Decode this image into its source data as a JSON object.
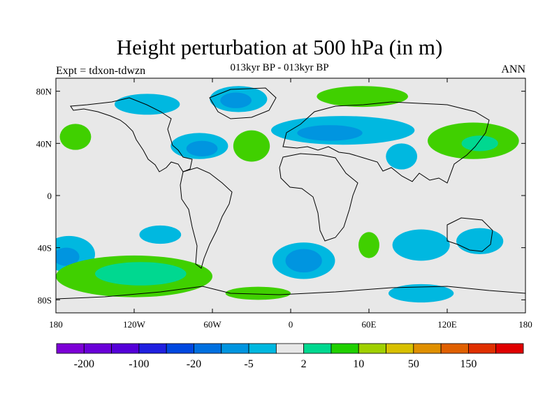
{
  "title": "Height perturbation at 500 hPa (in m)",
  "subtitle": "013kyr BP - 013kyr BP",
  "left_label": "Expt = tdxon-tdwzn",
  "right_label": "ANN",
  "map": {
    "background_color": "#e8e8e8",
    "lat_ticks": [
      {
        "value": 80,
        "label": "80N"
      },
      {
        "value": 40,
        "label": "40N"
      },
      {
        "value": 0,
        "label": "0"
      },
      {
        "value": -40,
        "label": "40S"
      },
      {
        "value": -80,
        "label": "80S"
      }
    ],
    "lon_ticks": [
      {
        "value": -180,
        "label": "180"
      },
      {
        "value": -120,
        "label": "120W"
      },
      {
        "value": -60,
        "label": "60W"
      },
      {
        "value": 0,
        "label": "0"
      },
      {
        "value": 60,
        "label": "60E"
      },
      {
        "value": 120,
        "label": "120E"
      },
      {
        "value": 180,
        "label": "180"
      }
    ],
    "lon_range": [
      -180,
      180
    ],
    "lat_range": [
      -90,
      90
    ],
    "regions": [
      {
        "name": "nw-atlantic-low",
        "lon": -70,
        "lat": 38,
        "rx": 22,
        "ry": 10,
        "level": "c1"
      },
      {
        "name": "nw-atlantic-low-core",
        "lon": -68,
        "lat": 36,
        "rx": 12,
        "ry": 6,
        "level": "c2"
      },
      {
        "name": "greenland-low",
        "lon": -40,
        "lat": 74,
        "rx": 22,
        "ry": 10,
        "level": "c1"
      },
      {
        "name": "greenland-low-core",
        "lon": -42,
        "lat": 73,
        "rx": 12,
        "ry": 6,
        "level": "c2"
      },
      {
        "name": "canada-low",
        "lon": -110,
        "lat": 70,
        "rx": 25,
        "ry": 8,
        "level": "c1"
      },
      {
        "name": "europe-low",
        "lon": 40,
        "lat": 50,
        "rx": 55,
        "ry": 11,
        "level": "c1"
      },
      {
        "name": "europe-low-core",
        "lon": 30,
        "lat": 48,
        "rx": 25,
        "ry": 6,
        "level": "c2"
      },
      {
        "name": "tibet-low",
        "lon": 85,
        "lat": 30,
        "rx": 12,
        "ry": 10,
        "level": "c1"
      },
      {
        "name": "south-pacific-low",
        "lon": -170,
        "lat": -45,
        "rx": 20,
        "ry": 14,
        "level": "c1"
      },
      {
        "name": "south-pacific-low-core",
        "lon": -172,
        "lat": -47,
        "rx": 10,
        "ry": 7,
        "level": "c2"
      },
      {
        "name": "southern-ocean-atl-low",
        "lon": 10,
        "lat": -50,
        "rx": 24,
        "ry": 14,
        "level": "c1"
      },
      {
        "name": "southern-ocean-atl-low-core",
        "lon": 10,
        "lat": -50,
        "rx": 14,
        "ry": 9,
        "level": "c2"
      },
      {
        "name": "indian-ocean-low",
        "lon": 100,
        "lat": -38,
        "rx": 22,
        "ry": 12,
        "level": "c1"
      },
      {
        "name": "australia-low",
        "lon": 145,
        "lat": -35,
        "rx": 18,
        "ry": 10,
        "level": "c1"
      },
      {
        "name": "antarctic-low",
        "lon": 100,
        "lat": -75,
        "rx": 25,
        "ry": 7,
        "level": "c1"
      },
      {
        "name": "east-pacific-south-low",
        "lon": -100,
        "lat": -30,
        "rx": 16,
        "ry": 7,
        "level": "c1"
      },
      {
        "name": "south-pacific-high",
        "lon": -120,
        "lat": -62,
        "rx": 60,
        "ry": 16,
        "level": "g1"
      },
      {
        "name": "south-pacific-high-core",
        "lon": -115,
        "lat": -60,
        "rx": 35,
        "ry": 9,
        "level": "g2"
      },
      {
        "name": "arctic-europe-high",
        "lon": 55,
        "lat": 76,
        "rx": 35,
        "ry": 8,
        "level": "g1"
      },
      {
        "name": "east-asia-high",
        "lon": 140,
        "lat": 42,
        "rx": 35,
        "ry": 14,
        "level": "g1"
      },
      {
        "name": "east-asia-high-core",
        "lon": 145,
        "lat": 40,
        "rx": 14,
        "ry": 6,
        "level": "g2"
      },
      {
        "name": "mid-atlantic-high",
        "lon": -30,
        "lat": 38,
        "rx": 14,
        "ry": 12,
        "level": "g1"
      },
      {
        "name": "south-indian-high",
        "lon": 60,
        "lat": -38,
        "rx": 8,
        "ry": 10,
        "level": "g1"
      },
      {
        "name": "south-atlantic-high",
        "lon": -25,
        "lat": -75,
        "rx": 25,
        "ry": 5,
        "level": "g1"
      },
      {
        "name": "ne-pacific-high",
        "lon": -165,
        "lat": 45,
        "rx": 12,
        "ry": 10,
        "level": "g1"
      }
    ]
  },
  "colorbar": {
    "colors": [
      "#7d00d6",
      "#6a00d8",
      "#5500d8",
      "#2020e0",
      "#0048e0",
      "#0070e0",
      "#0095e0",
      "#00b8e0",
      "#e8e8e8",
      "#00d890",
      "#20d000",
      "#a0d000",
      "#d8c000",
      "#e09000",
      "#e06000",
      "#e03000",
      "#e00000"
    ],
    "labels": [
      "-200",
      "-100",
      "-20",
      "-5",
      "2",
      "10",
      "50",
      "150"
    ]
  },
  "level_colors": {
    "c1": "#00b8e0",
    "c2": "#0095e0",
    "g1": "#40d000",
    "g2": "#00d890"
  }
}
